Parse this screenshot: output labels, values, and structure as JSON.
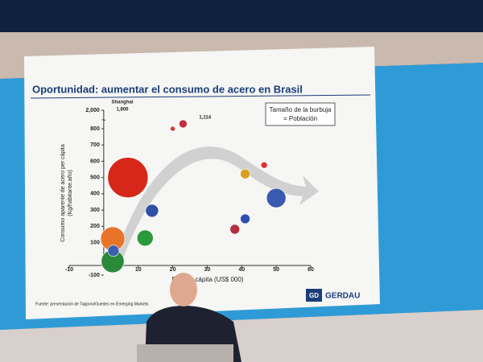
{
  "chart_data": {
    "type": "bubble",
    "title": "Oportunidad: aumentar el consumo de acero en Brasil",
    "y_label_lines": [
      "Consumo aparente de acero per cápita",
      "(Kg/habitante.año)"
    ],
    "x_label": "PIB per cápita (US$ 000)",
    "xlim": [
      -10,
      60
    ],
    "xticks": [
      -10,
      10,
      20,
      30,
      40,
      50,
      60
    ],
    "ylim": [
      -100,
      2000
    ],
    "yticks": [
      -100,
      100,
      200,
      300,
      400,
      500,
      600,
      700,
      800,
      {
        "value": 2000,
        "label": "2,000"
      }
    ],
    "series": [
      {
        "x": [
          7,
          2.6,
          2.6,
          2.8,
          12,
          14,
          23,
          20,
          41,
          46.5,
          41,
          38,
          50
        ],
        "values": [
          500,
          123,
          -15,
          50,
          128,
          296,
          1114,
          800,
          522,
          576,
          246,
          182,
          374
        ],
        "value_labels": [
          null,
          null,
          null,
          null,
          null,
          null,
          "1,114",
          null,
          null,
          null,
          null,
          null,
          null
        ],
        "sizes": [
          625,
          225,
          200,
          49,
          100,
          64,
          25,
          9,
          36,
          16,
          36,
          36,
          144
        ],
        "colors": [
          "#d62718",
          "#e8742a",
          "#2a8a3a",
          "#3a5fb0",
          "#2a9a3a",
          "#3050a8",
          "#c03040",
          "#d83030",
          "#d8a020",
          "#e03030",
          "#3050b0",
          "#b03040",
          "#3a5ab0"
        ]
      }
    ],
    "annotations": [
      "Shanghai",
      "1,800"
    ],
    "legend_lines": [
      "Tamaño de la burbuja",
      "= Población"
    ],
    "source": "Fuente: presentación de Tapponi/Guedes en Emerging Markets",
    "logo": {
      "mark": "GD",
      "name": "GERDAU"
    }
  }
}
